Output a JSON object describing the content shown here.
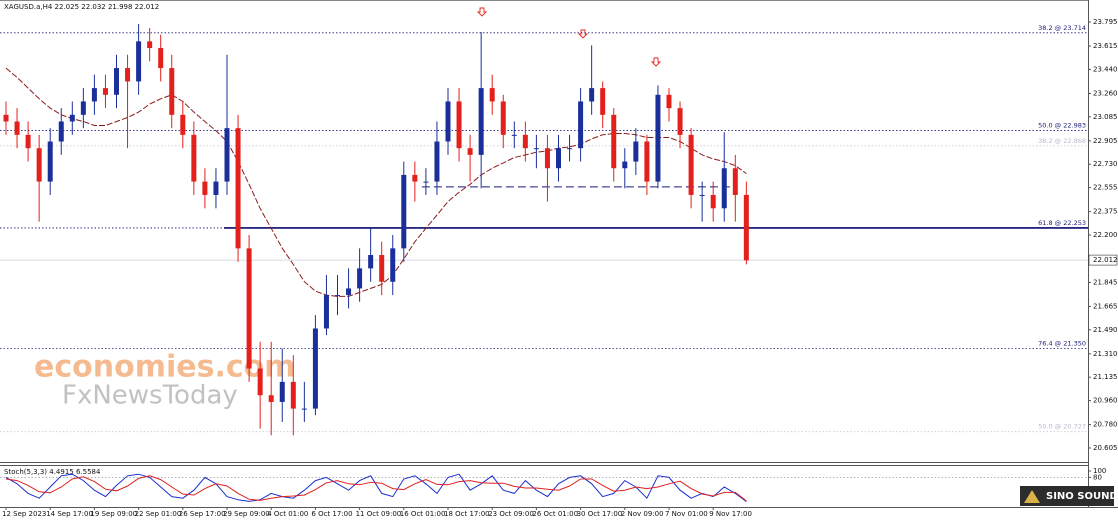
{
  "chart_data": [
    {
      "type": "candlestick",
      "title": "XAGUSD.a,H4  22.025 22.032 21.998 22.012",
      "categories": [
        "12 Sep 2023",
        null,
        null,
        null,
        "14 Sep 17:00",
        null,
        null,
        null,
        "19 Sep 09:00",
        null,
        null,
        null,
        "22 Sep 01:00",
        null,
        null,
        null,
        "26 Sep 17:00",
        null,
        null,
        null,
        "29 Sep 09:00",
        null,
        null,
        null,
        "4 Oct 01:00",
        null,
        null,
        null,
        "6 Oct 17:00",
        null,
        null,
        null,
        "11 Oct 09:00",
        null,
        null,
        null,
        "16 Oct 01:00",
        null,
        null,
        null,
        "18 Oct 17:00",
        null,
        null,
        null,
        "23 Oct 09:00",
        null,
        null,
        null,
        "26 Oct 01:00",
        null,
        null,
        null,
        "30 Oct 17:00",
        null,
        null,
        null,
        "2 Nov 09:00",
        null,
        null,
        null,
        "7 Nov 01:00",
        null,
        null,
        null,
        "9 Nov 17:00",
        null,
        null,
        null
      ],
      "open": [
        23.1,
        23.05,
        22.95,
        22.85,
        22.6,
        22.9,
        23.05,
        23.1,
        23.2,
        23.3,
        23.25,
        23.45,
        23.35,
        23.65,
        23.6,
        23.45,
        23.1,
        22.95,
        22.6,
        22.5,
        22.6,
        23.0,
        22.1,
        21.2,
        21.0,
        20.95,
        21.1,
        20.9,
        20.9,
        21.5,
        21.75,
        21.75,
        21.8,
        21.95,
        22.05,
        21.85,
        22.1,
        22.65,
        22.6,
        22.6,
        22.9,
        23.2,
        22.85,
        22.8,
        23.3,
        23.2,
        22.95,
        22.95,
        22.85,
        22.85,
        22.7,
        22.85,
        22.85,
        23.2,
        23.3,
        23.1,
        22.7,
        22.75,
        22.9,
        22.6,
        23.25,
        23.15,
        22.95,
        22.5,
        22.5,
        22.4,
        22.7,
        22.5
      ],
      "high": [
        23.2,
        23.15,
        23.05,
        22.95,
        23.0,
        23.15,
        23.2,
        23.3,
        23.4,
        23.4,
        23.55,
        23.55,
        23.78,
        23.75,
        23.7,
        23.55,
        23.2,
        23.05,
        22.7,
        22.7,
        23.55,
        23.1,
        22.2,
        21.4,
        21.4,
        21.35,
        21.3,
        21.1,
        21.6,
        21.9,
        21.9,
        21.95,
        22.1,
        22.25,
        22.15,
        22.2,
        22.75,
        22.75,
        22.7,
        23.05,
        23.3,
        23.3,
        22.95,
        23.72,
        23.4,
        23.25,
        23.05,
        23.05,
        22.95,
        22.95,
        22.95,
        22.95,
        23.3,
        23.62,
        23.35,
        23.15,
        22.85,
        23.0,
        22.95,
        23.32,
        23.3,
        23.2,
        23.0,
        22.6,
        22.6,
        22.97,
        22.8,
        22.6
      ],
      "low": [
        22.95,
        22.85,
        22.75,
        22.3,
        22.5,
        22.8,
        22.95,
        23.0,
        23.1,
        23.15,
        23.15,
        22.85,
        23.25,
        23.5,
        23.35,
        23.0,
        22.85,
        22.5,
        22.4,
        22.4,
        22.5,
        22.0,
        21.1,
        20.75,
        20.7,
        20.8,
        20.7,
        20.8,
        20.85,
        21.45,
        21.6,
        21.65,
        21.7,
        21.85,
        21.75,
        21.75,
        22.0,
        22.45,
        22.5,
        22.5,
        22.8,
        22.75,
        22.6,
        22.55,
        23.1,
        22.85,
        22.85,
        22.75,
        22.7,
        22.45,
        22.6,
        22.75,
        22.75,
        23.1,
        23.0,
        22.6,
        22.55,
        22.65,
        22.5,
        22.55,
        23.05,
        22.85,
        22.4,
        22.3,
        22.3,
        22.3,
        22.3,
        21.98
      ],
      "close": [
        23.05,
        22.95,
        22.85,
        22.6,
        22.9,
        23.05,
        23.1,
        23.2,
        23.3,
        23.25,
        23.45,
        23.35,
        23.65,
        23.6,
        23.45,
        23.1,
        22.95,
        22.6,
        22.5,
        22.6,
        23.0,
        22.1,
        21.2,
        21.0,
        20.95,
        21.1,
        20.9,
        20.9,
        21.5,
        21.75,
        21.75,
        21.8,
        21.95,
        22.05,
        21.85,
        22.1,
        22.65,
        22.6,
        22.6,
        22.9,
        23.2,
        22.85,
        22.8,
        23.3,
        23.2,
        22.95,
        22.95,
        22.85,
        22.85,
        22.7,
        22.85,
        22.85,
        23.2,
        23.3,
        23.1,
        22.7,
        22.75,
        22.9,
        22.6,
        23.25,
        23.15,
        22.95,
        22.5,
        22.5,
        22.4,
        22.7,
        22.5,
        22.01
      ],
      "up_color": "#1b2f9a",
      "down_color": "#e3201b",
      "ma": {
        "color": "#8b1c1c",
        "values": [
          23.45,
          23.38,
          23.3,
          23.22,
          23.15,
          23.1,
          23.07,
          23.05,
          23.02,
          23.02,
          23.05,
          23.08,
          23.12,
          23.18,
          23.22,
          23.25,
          23.2,
          23.12,
          23.05,
          22.98,
          22.9,
          22.75,
          22.58,
          22.4,
          22.25,
          22.1,
          21.98,
          21.85,
          21.78,
          21.75,
          21.74,
          21.74,
          21.77,
          21.8,
          21.83,
          21.9,
          22.02,
          22.15,
          22.25,
          22.35,
          22.45,
          22.52,
          22.58,
          22.65,
          22.7,
          22.74,
          22.78,
          22.8,
          22.82,
          22.83,
          22.85,
          22.86,
          22.88,
          22.92,
          22.95,
          22.96,
          22.96,
          22.95,
          22.93,
          22.93,
          22.93,
          22.9,
          22.85,
          22.8,
          22.77,
          22.75,
          22.72,
          22.66
        ]
      },
      "ylim": [
        20.5,
        23.84
      ],
      "yticks": [
        23.795,
        23.615,
        {
          "value": 23.44,
          "label": "23.440"
        },
        {
          "value": 23.26,
          "label": "23.260"
        },
        23.085,
        22.905,
        {
          "value": 22.73,
          "label": "22.730"
        },
        22.555,
        22.375,
        {
          "value": 22.2,
          "label": "22.200"
        },
        21.845,
        21.665,
        {
          "value": 21.49,
          "label": "21.490"
        },
        {
          "value": 21.31,
          "label": "21.310"
        },
        21.135,
        {
          "value": 20.96,
          "label": "20.960"
        },
        {
          "value": 20.78,
          "label": "20.780"
        },
        20.605
      ],
      "current_price": 22.012,
      "levels": [
        {
          "label": "38.2 @ 23.714",
          "value": 23.714,
          "strong": true
        },
        {
          "label": "50.0 @ 22.983",
          "value": 22.983,
          "strong": true
        },
        {
          "label": "38.2 @ 22.868",
          "value": 22.868,
          "strong": false
        },
        {
          "label": "61.8 @ 22.253",
          "value": 22.253,
          "strong": true
        },
        {
          "label": "76.4 @ 21.350",
          "value": 21.35,
          "strong": true
        },
        {
          "label": "50.0 @ 20.727",
          "value": 20.727,
          "strong": false
        }
      ],
      "dashed_level": 22.56,
      "watermark": [
        "economies.com",
        "FxNewsToday"
      ],
      "logo": "SINO SOUND"
    },
    {
      "type": "line",
      "title": "Stoch(5,3,3) 4.4915 6.5584",
      "series": [
        {
          "color": "#1b2fd0",
          "values": [
            80,
            60,
            30,
            15,
            50,
            85,
            90,
            70,
            40,
            20,
            55,
            85,
            90,
            80,
            50,
            20,
            15,
            40,
            80,
            60,
            20,
            10,
            5,
            10,
            30,
            20,
            15,
            40,
            70,
            80,
            60,
            40,
            70,
            85,
            30,
            20,
            75,
            85,
            60,
            30,
            80,
            90,
            40,
            60,
            85,
            40,
            30,
            70,
            40,
            20,
            60,
            80,
            85,
            60,
            20,
            30,
            70,
            50,
            15,
            85,
            80,
            40,
            15,
            30,
            20,
            50,
            30,
            4.4915
          ]
        },
        {
          "color": "#e02020",
          "values": [
            75,
            70,
            55,
            35,
            32,
            50,
            75,
            82,
            67,
            43,
            38,
            53,
            77,
            85,
            73,
            50,
            28,
            25,
            45,
            60,
            53,
            30,
            12,
            8,
            15,
            20,
            22,
            25,
            42,
            63,
            70,
            60,
            57,
            65,
            62,
            45,
            42,
            60,
            73,
            58,
            57,
            67,
            70,
            63,
            62,
            62,
            52,
            47,
            47,
            43,
            40,
            53,
            75,
            75,
            55,
            37,
            40,
            50,
            45,
            50,
            60,
            68,
            45,
            28,
            22,
            33,
            33,
            6.5584
          ]
        }
      ],
      "ylim": [
        0,
        100
      ],
      "yticks": [
        0,
        80,
        100
      ]
    }
  ]
}
